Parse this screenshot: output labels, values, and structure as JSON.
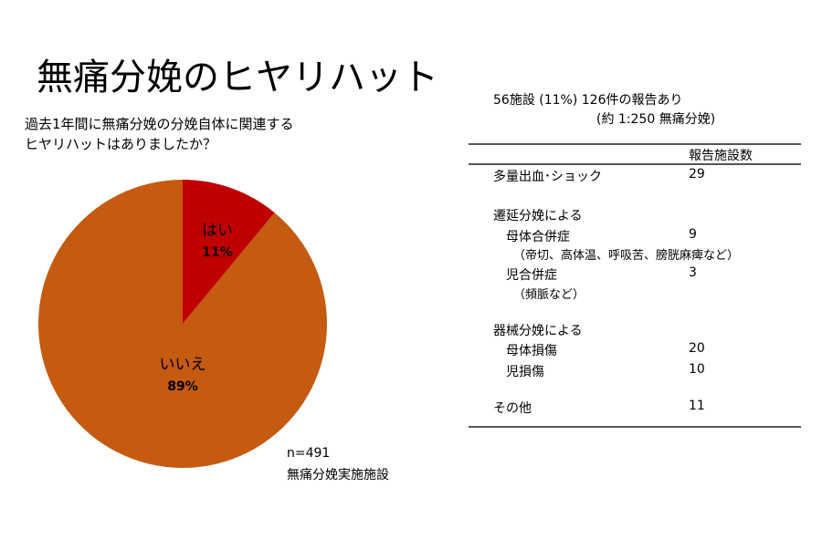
{
  "title": "無痛分娩のヒヤリハット",
  "question": [
    "過去1年間に無痛分娩の分娩自体に関連する",
    "ヒヤリハットはありましたか？"
  ],
  "chart_data": {
    "type": "pie",
    "slices": [
      {
        "label": "はい",
        "value": 11,
        "pct_label": "11%",
        "color": "#C00000"
      },
      {
        "label": "いいえ",
        "value": 89,
        "pct_label": "89%",
        "color": "#C55A11"
      }
    ],
    "start": "12 o'clock",
    "direction": "clockwise"
  },
  "note": [
    "n=491",
    "無痛分娩実施施設"
  ],
  "summary": [
    "56施設 (11%)  126件の報告あり",
    "(約 1:250 無痛分娩)"
  ],
  "table": {
    "header": "報告施設数",
    "rows": [
      {
        "label": "多量出血･ショック",
        "value": "29",
        "indent": 0
      },
      {
        "label": "遷延分娩による",
        "value": "",
        "indent": 0
      },
      {
        "label": "母体合併症",
        "value": "9",
        "indent": 1
      },
      {
        "label": "（帝切、高体温、呼吸苦、膀胱麻痺など）",
        "value": "",
        "indent": 2
      },
      {
        "label": "児合併症",
        "value": "3",
        "indent": 1
      },
      {
        "label": "（頻脈など）",
        "value": "",
        "indent": 2
      },
      {
        "label": "器械分娩による",
        "value": "",
        "indent": 0
      },
      {
        "label": "母体損傷",
        "value": "20",
        "indent": 1
      },
      {
        "label": "児損傷",
        "value": "10",
        "indent": 1
      },
      {
        "label": "その他",
        "value": "11",
        "indent": 0
      }
    ]
  }
}
